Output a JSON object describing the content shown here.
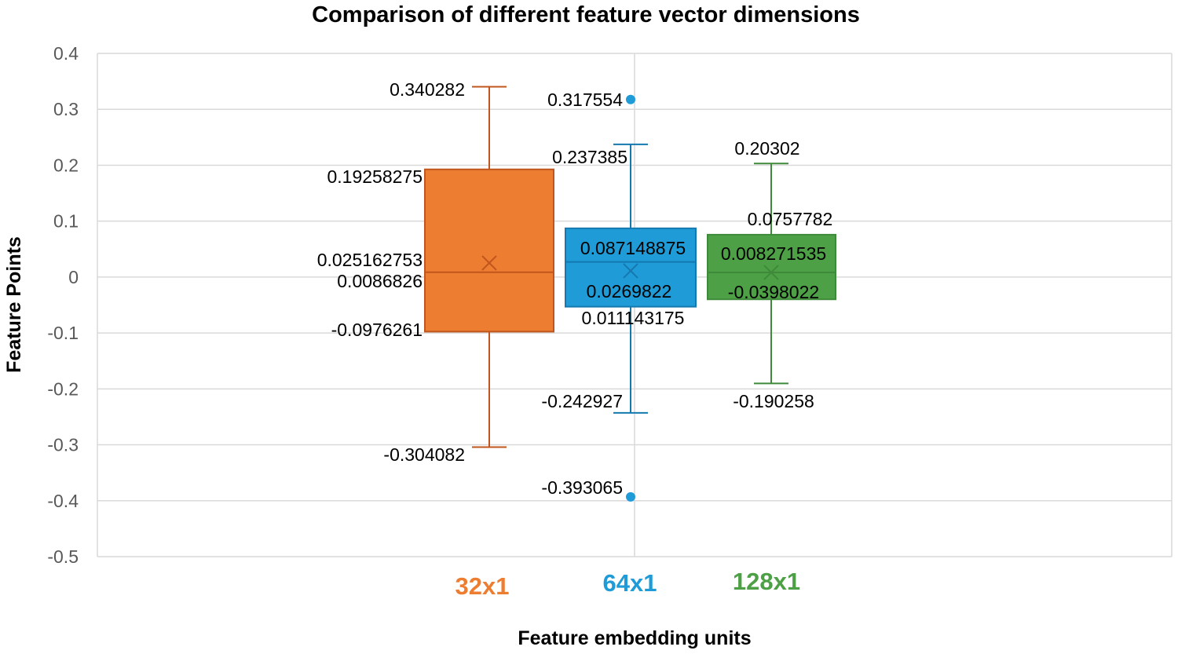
{
  "chart_data": {
    "type": "box",
    "title": "Comparison of different feature vector dimensions",
    "xlabel": "Feature embedding units",
    "ylabel": "Feature Points",
    "ylim": [
      -0.5,
      0.4
    ],
    "yticks": [
      "0.4",
      "0.3",
      "0.2",
      "0.1",
      "0",
      "-0.1",
      "-0.2",
      "-0.3",
      "-0.4",
      "-0.5"
    ],
    "grid": true,
    "categories": [
      "32x1",
      "64x1",
      "128x1"
    ],
    "series": [
      {
        "category": "32x1",
        "color": "#ED7D31",
        "max": 0.340282,
        "q3": 0.19258275,
        "mean": 0.025162753,
        "median": 0.0086826,
        "q1": -0.0976261,
        "min": -0.304082,
        "outliers": [],
        "labels": [
          "0.340282",
          "0.19258275",
          "0.025162753",
          "0.0086826",
          "-0.0976261",
          "-0.304082"
        ]
      },
      {
        "category": "64x1",
        "color": "#1F9BD7",
        "max": 0.237385,
        "q3": 0.087148875,
        "mean": 0.011143175,
        "median": 0.0269822,
        "q1": -0.053,
        "min": -0.242927,
        "outliers": [
          0.317554,
          -0.393065
        ],
        "labels": [
          "0.317554",
          "0.237385",
          "0.087148875",
          "0.0269822",
          "0.011143175",
          "-0.242927",
          "-0.393065"
        ]
      },
      {
        "category": "128x1",
        "color": "#4EA046",
        "max": 0.20302,
        "q3": 0.0757782,
        "mean": 0.008271535,
        "median": 0.008271535,
        "q1": -0.0398022,
        "min": -0.190258,
        "outliers": [],
        "labels": [
          "0.20302",
          "0.0757782",
          "0.008271535",
          "-0.0398022",
          "-0.190258"
        ]
      }
    ]
  }
}
